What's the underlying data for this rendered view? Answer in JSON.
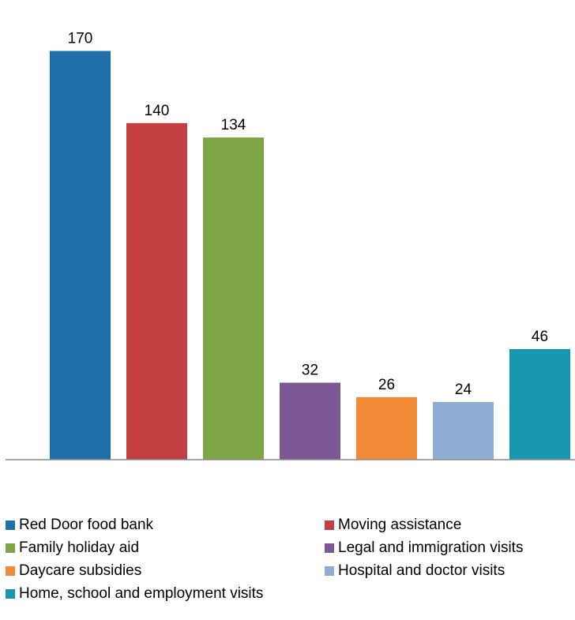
{
  "chart_data": {
    "type": "bar",
    "title": "",
    "xlabel": "",
    "ylabel": "",
    "ylim": [
      0,
      180
    ],
    "grid": false,
    "legend_position": "bottom",
    "series": [
      {
        "name": "Red Door food bank",
        "value": 170,
        "label": "170",
        "color": "#1f6fa8"
      },
      {
        "name": "Moving assistance",
        "value": 140,
        "label": "140",
        "color": "#c43f3f"
      },
      {
        "name": "Family holiday aid",
        "value": 134,
        "label": "134",
        "color": "#7ea646"
      },
      {
        "name": "Legal and immigration visits",
        "value": 32,
        "label": "32",
        "color": "#7b5796"
      },
      {
        "name": "Daycare subsidies",
        "value": 26,
        "label": "26",
        "color": "#f08a36"
      },
      {
        "name": "Hospital and doctor visits",
        "value": 24,
        "label": "24",
        "color": "#8eacd4"
      },
      {
        "name": "Home, school and employment visits",
        "value": 46,
        "label": "46",
        "color": "#1897ae"
      }
    ]
  }
}
